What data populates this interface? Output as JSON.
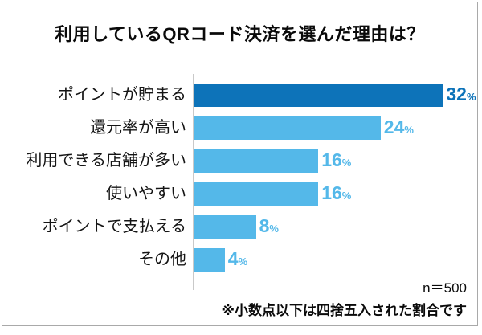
{
  "title": "利用しているQRコード決済を選んだ理由は？",
  "footer": {
    "sample_size": "n＝500",
    "footnote": "※小数点以下は四捨五入された割合です"
  },
  "colors": {
    "primary_bar": "#0d73b9",
    "secondary_bar": "#54b8e9",
    "axis_line": "#c9c9c9",
    "frame_border": "#a9a9a9",
    "text": "#0a0a0a"
  },
  "chart_data": {
    "type": "bar",
    "orientation": "horizontal",
    "title": "利用しているQRコード決済を選んだ理由は？",
    "categories": [
      "ポイントが貯まる",
      "還元率が高い",
      "利用できる店舗が多い",
      "使いやすい",
      "ポイントで支払える",
      "その他"
    ],
    "values": [
      32,
      24,
      16,
      16,
      8,
      4
    ],
    "unit": "%",
    "bar_colors": [
      "#0d73b9",
      "#54b8e9",
      "#54b8e9",
      "#54b8e9",
      "#54b8e9",
      "#54b8e9"
    ],
    "value_label_colors": [
      "#0d73b9",
      "#54b8e9",
      "#54b8e9",
      "#54b8e9",
      "#54b8e9",
      "#54b8e9"
    ],
    "xlim": [
      0,
      33
    ],
    "grid": false,
    "legend": false,
    "sample_size_label": "n＝500",
    "footnote": "※小数点以下は四捨五入された割合です"
  }
}
